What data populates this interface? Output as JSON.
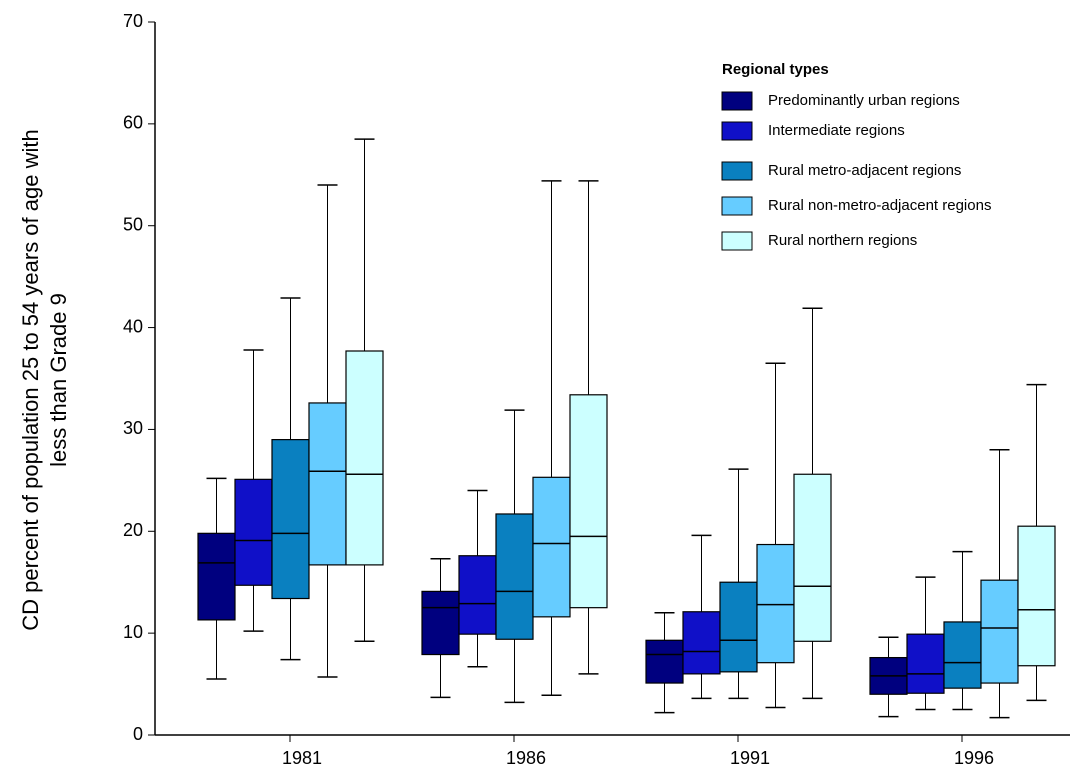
{
  "chart_data": {
    "type": "box",
    "y_label_lines": [
      "CD percent of population 25 to 54 years of age  with",
      "less than Grade 9"
    ],
    "categories": [
      "1981",
      "1986",
      "1991",
      "1996"
    ],
    "ylim": [
      0,
      70
    ],
    "yticks": [
      0,
      10,
      20,
      30,
      40,
      50,
      60,
      70
    ],
    "legend_title": "Regional types",
    "series": [
      {
        "name": "Predominantly urban regions",
        "color": "#00007f",
        "min": [
          5.5,
          3.7,
          2.2,
          1.8
        ],
        "q1": [
          11.3,
          7.9,
          5.1,
          4.0
        ],
        "median": [
          16.9,
          12.5,
          7.9,
          5.8
        ],
        "q3": [
          19.8,
          14.1,
          9.3,
          7.6
        ],
        "max": [
          25.2,
          17.3,
          12.0,
          9.6
        ]
      },
      {
        "name": "Intermediate regions",
        "color": "#1010c8",
        "min": [
          10.2,
          6.7,
          3.6,
          2.5
        ],
        "q1": [
          14.7,
          9.9,
          6.0,
          4.1
        ],
        "median": [
          19.1,
          12.9,
          8.2,
          6.0
        ],
        "q3": [
          25.1,
          17.6,
          12.1,
          9.9
        ],
        "max": [
          37.8,
          24.0,
          19.6,
          15.5
        ]
      },
      {
        "name": "Rural metro-adjacent regions",
        "color": "#0a80c0",
        "min": [
          7.4,
          3.2,
          3.6,
          2.5
        ],
        "q1": [
          13.4,
          9.4,
          6.2,
          4.6
        ],
        "median": [
          19.8,
          14.1,
          9.3,
          7.1
        ],
        "q3": [
          29.0,
          21.7,
          15.0,
          11.1
        ],
        "max": [
          42.9,
          31.9,
          26.1,
          18.0
        ]
      },
      {
        "name": "Rural non-metro-adjacent regions",
        "color": "#66ccff",
        "min": [
          5.7,
          3.9,
          2.7,
          1.7
        ],
        "q1": [
          16.7,
          11.6,
          7.1,
          5.1
        ],
        "median": [
          25.9,
          18.8,
          12.8,
          10.5
        ],
        "q3": [
          32.6,
          25.3,
          18.7,
          15.2
        ],
        "max": [
          54.0,
          54.4,
          36.5,
          28.0
        ]
      },
      {
        "name": "Rural northern regions",
        "color": "#ccffff",
        "min": [
          9.2,
          6.0,
          3.6,
          3.4
        ],
        "q1": [
          16.7,
          12.5,
          9.2,
          6.8
        ],
        "median": [
          25.6,
          19.5,
          14.6,
          12.3
        ],
        "q3": [
          37.7,
          33.4,
          25.6,
          20.5
        ],
        "max": [
          58.5,
          54.4,
          41.9,
          34.4
        ]
      }
    ]
  }
}
